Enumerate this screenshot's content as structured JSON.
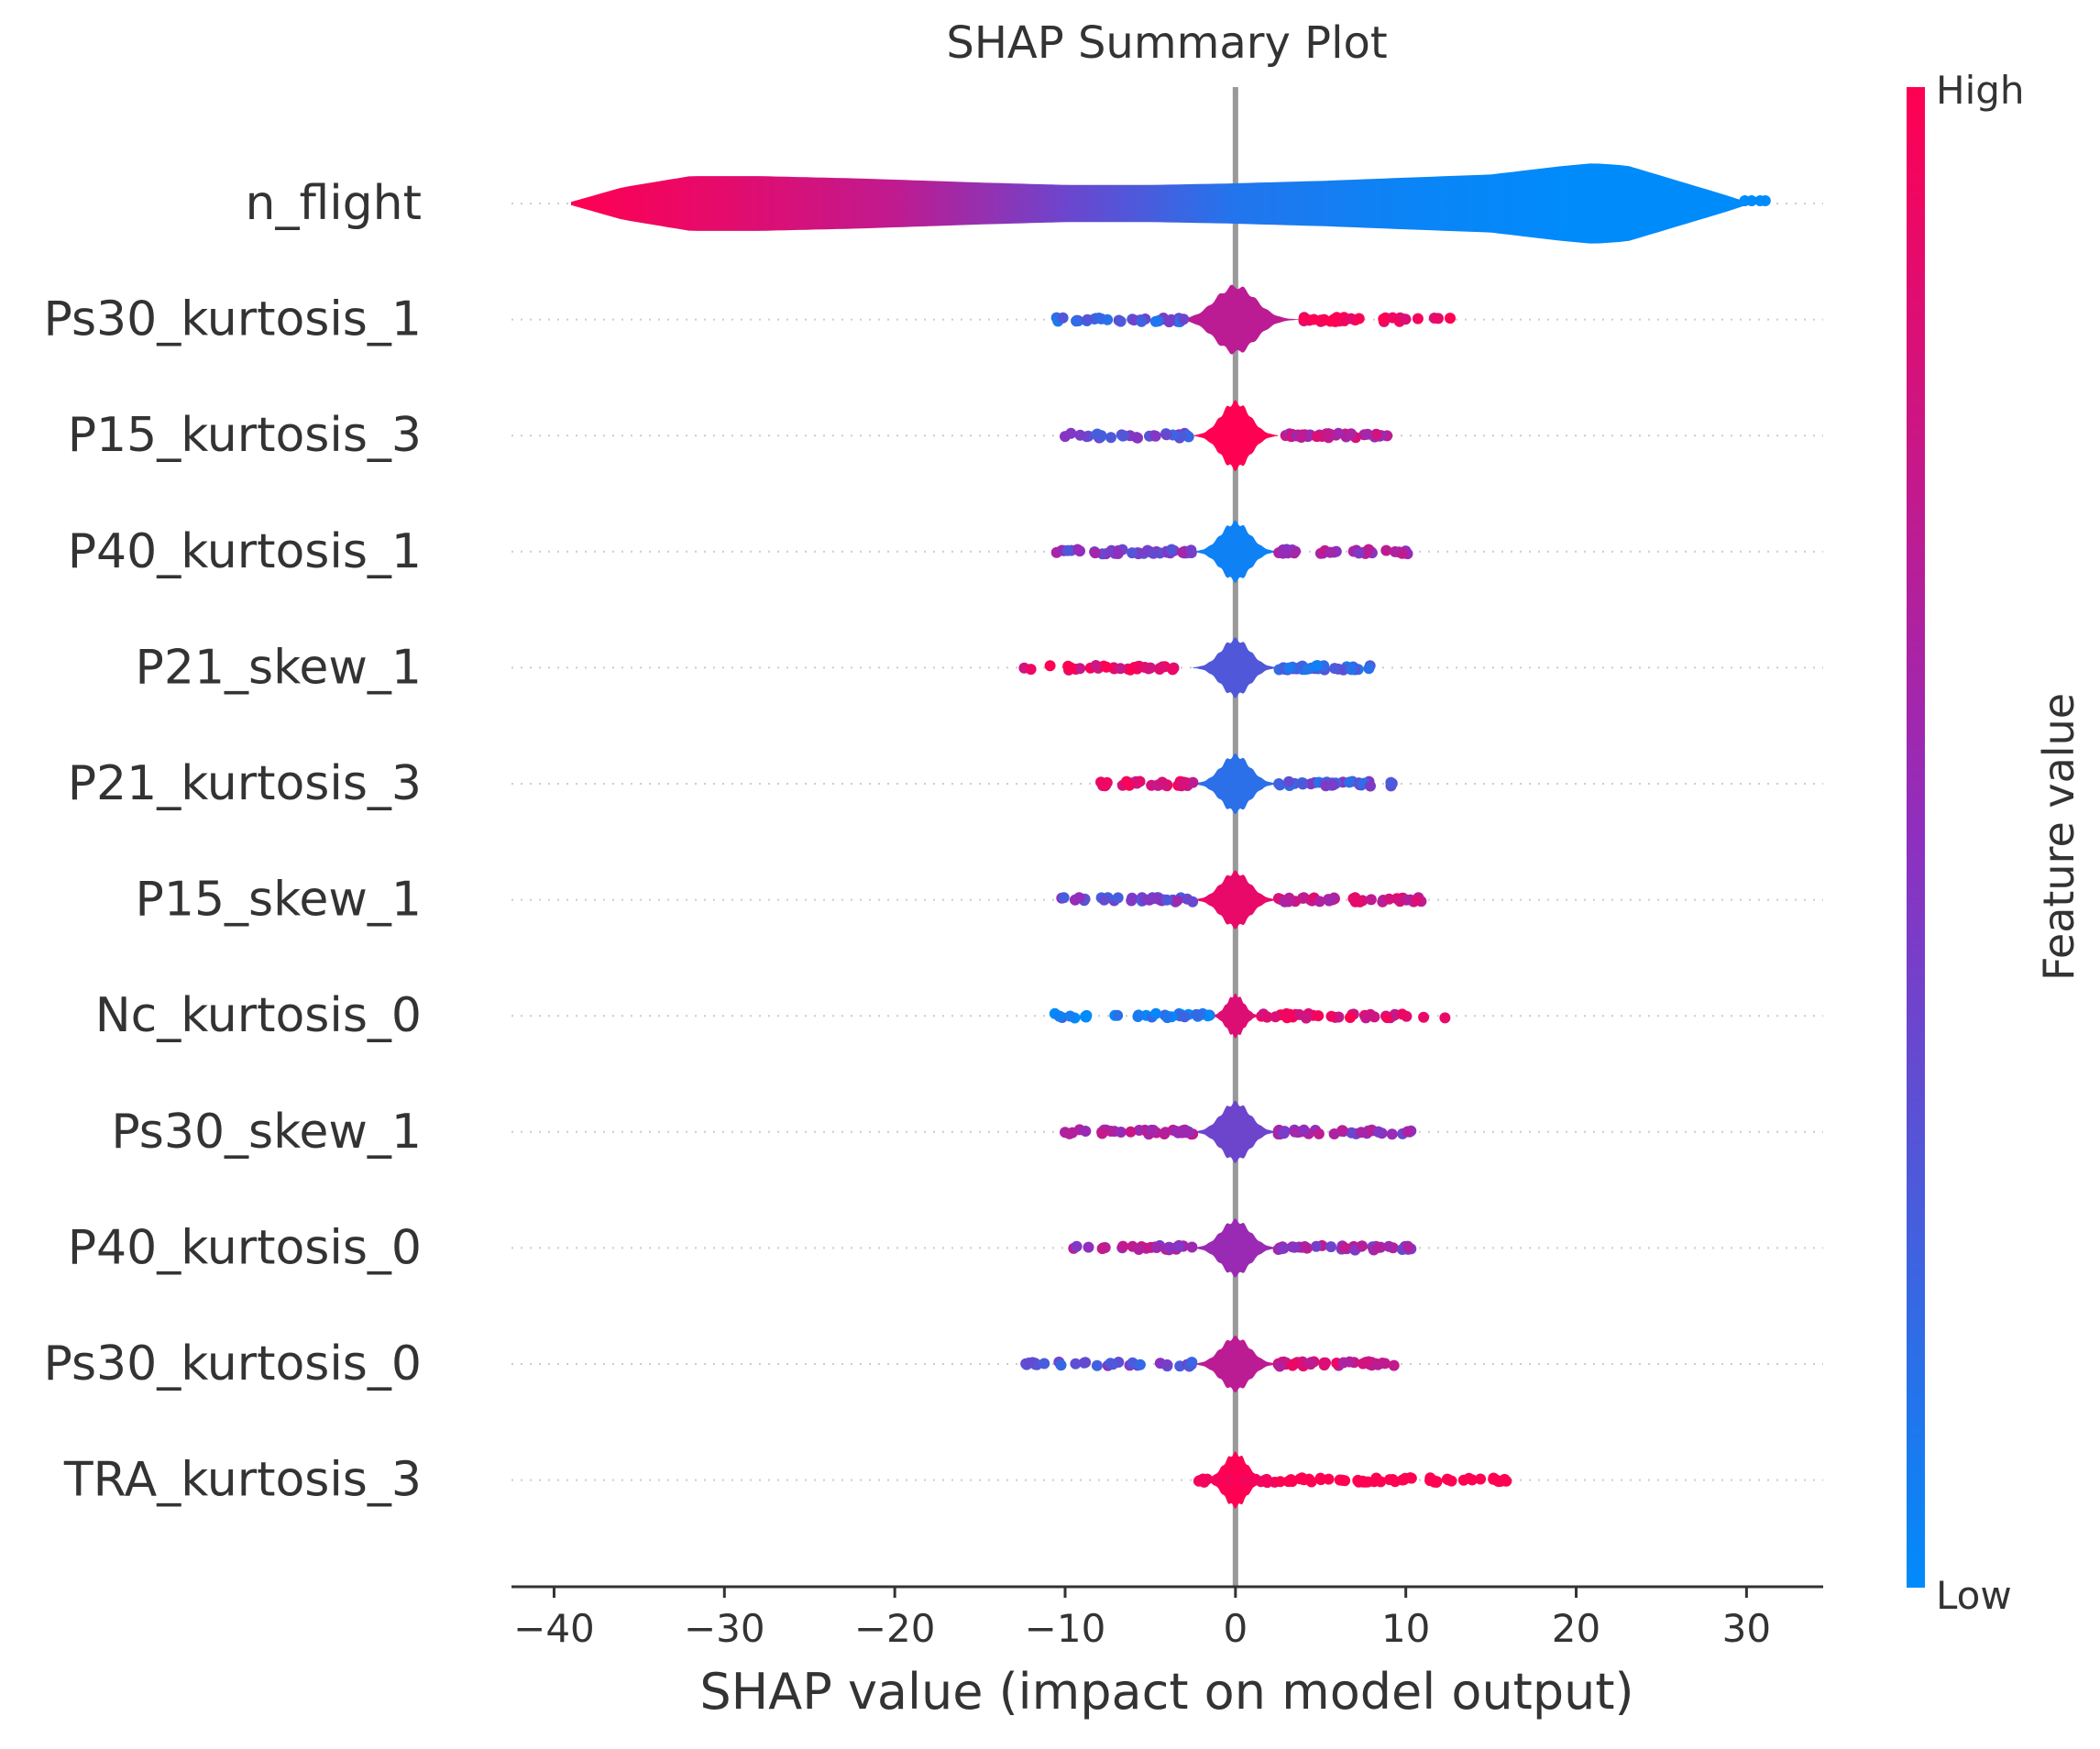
{
  "chart_data": {
    "type": "violin",
    "title": "SHAP Summary Plot",
    "xlabel": "SHAP value (impact on model output)",
    "ylabel": "",
    "xlim": [
      -42.5,
      34.5
    ],
    "xticks": [
      -40,
      -30,
      -20,
      -10,
      0,
      10,
      20,
      30
    ],
    "xtick_labels": [
      "−40",
      "−30",
      "−20",
      "−10",
      "0",
      "10",
      "20",
      "30"
    ],
    "zero_line": true,
    "colorbar": {
      "label": "Feature value",
      "high_label": "High",
      "low_label": "Low",
      "low_color": "#008bfb",
      "mid_color": "#8f2fbf",
      "high_color": "#ff0052"
    },
    "features": [
      {
        "name": "n_flight",
        "min": -39,
        "max": 30,
        "outliers": [
          29.9,
          30.3,
          30.8,
          31.1
        ],
        "profile": [
          [
            -39,
            0.04
          ],
          [
            -36,
            0.4
          ],
          [
            -32,
            0.68
          ],
          [
            -28,
            0.68
          ],
          [
            -22,
            0.62
          ],
          [
            -15,
            0.52
          ],
          [
            -10,
            0.46
          ],
          [
            -5,
            0.46
          ],
          [
            0,
            0.5
          ],
          [
            5,
            0.56
          ],
          [
            10,
            0.64
          ],
          [
            15,
            0.72
          ],
          [
            19,
            0.92
          ],
          [
            21,
            1.0
          ],
          [
            23,
            0.94
          ],
          [
            26,
            0.56
          ],
          [
            29,
            0.18
          ],
          [
            30,
            0.04
          ]
        ],
        "colors": [
          [
            -39,
            1.0
          ],
          [
            -30,
            0.88
          ],
          [
            -20,
            0.72
          ],
          [
            -10,
            0.38
          ],
          [
            0,
            0.12
          ],
          [
            10,
            0.04
          ],
          [
            20,
            0.0
          ],
          [
            31,
            0.0
          ]
        ]
      },
      {
        "name": "Ps30_kurtosis_1",
        "min": -3,
        "max": 4,
        "hw": 0.82,
        "bias": 0.7,
        "pos_color": 0.95,
        "neg_color": 0.25,
        "range": [
          -10.5,
          12.6
        ],
        "seed": 11
      },
      {
        "name": "P15_kurtosis_3",
        "min": -2.5,
        "max": 2.5,
        "hw": 0.82,
        "bias": 1.0,
        "pos_color": 0.7,
        "neg_color": 0.35,
        "range": [
          -10.0,
          8.9
        ],
        "seed": 23
      },
      {
        "name": "P40_kurtosis_1",
        "min": -2.5,
        "max": 2.5,
        "hw": 0.72,
        "bias": 0.05,
        "pos_color": 0.6,
        "neg_color": 0.45,
        "range": [
          -10.5,
          10.1
        ],
        "seed": 37
      },
      {
        "name": "P21_skew_1",
        "min": -2.5,
        "max": 2.5,
        "hw": 0.7,
        "bias": 0.28,
        "pos_color": 0.2,
        "neg_color": 0.9,
        "range": [
          -12.4,
          7.9
        ],
        "seed": 41
      },
      {
        "name": "P21_kurtosis_3",
        "min": -2.5,
        "max": 2.5,
        "hw": 0.7,
        "bias": 0.15,
        "pos_color": 0.3,
        "neg_color": 0.85,
        "range": [
          -7.9,
          9.2
        ],
        "seed": 53
      },
      {
        "name": "P15_skew_1",
        "min": -2.5,
        "max": 2.5,
        "hw": 0.68,
        "bias": 0.9,
        "pos_color": 0.75,
        "neg_color": 0.4,
        "range": [
          -10.2,
          10.9
        ],
        "seed": 67
      },
      {
        "name": "Nc_kurtosis_0",
        "min": -1.5,
        "max": 1.5,
        "hw": 0.52,
        "bias": 0.85,
        "pos_color": 0.88,
        "neg_color": 0.05,
        "range": [
          -10.6,
          12.3
        ],
        "seed": 71
      },
      {
        "name": "Ps30_skew_1",
        "min": -2.5,
        "max": 2.5,
        "hw": 0.72,
        "bias": 0.38,
        "pos_color": 0.55,
        "neg_color": 0.6,
        "range": [
          -10.0,
          10.3
        ],
        "seed": 83
      },
      {
        "name": "P40_kurtosis_0",
        "min": -2.5,
        "max": 2.5,
        "hw": 0.68,
        "bias": 0.55,
        "pos_color": 0.55,
        "neg_color": 0.6,
        "range": [
          -9.5,
          10.3
        ],
        "seed": 97
      },
      {
        "name": "Ps30_kurtosis_0",
        "min": -2.5,
        "max": 2.5,
        "hw": 0.66,
        "bias": 0.7,
        "pos_color": 0.75,
        "neg_color": 0.35,
        "range": [
          -12.3,
          9.3
        ],
        "seed": 101
      },
      {
        "name": "TRA_kurtosis_3",
        "min": -2,
        "max": 2,
        "hw": 0.66,
        "bias": 1.0,
        "pos_color": 1.0,
        "neg_color": 0.9,
        "range": [
          -2.2,
          15.9
        ],
        "seed": 113,
        "tail_right": true
      }
    ]
  }
}
